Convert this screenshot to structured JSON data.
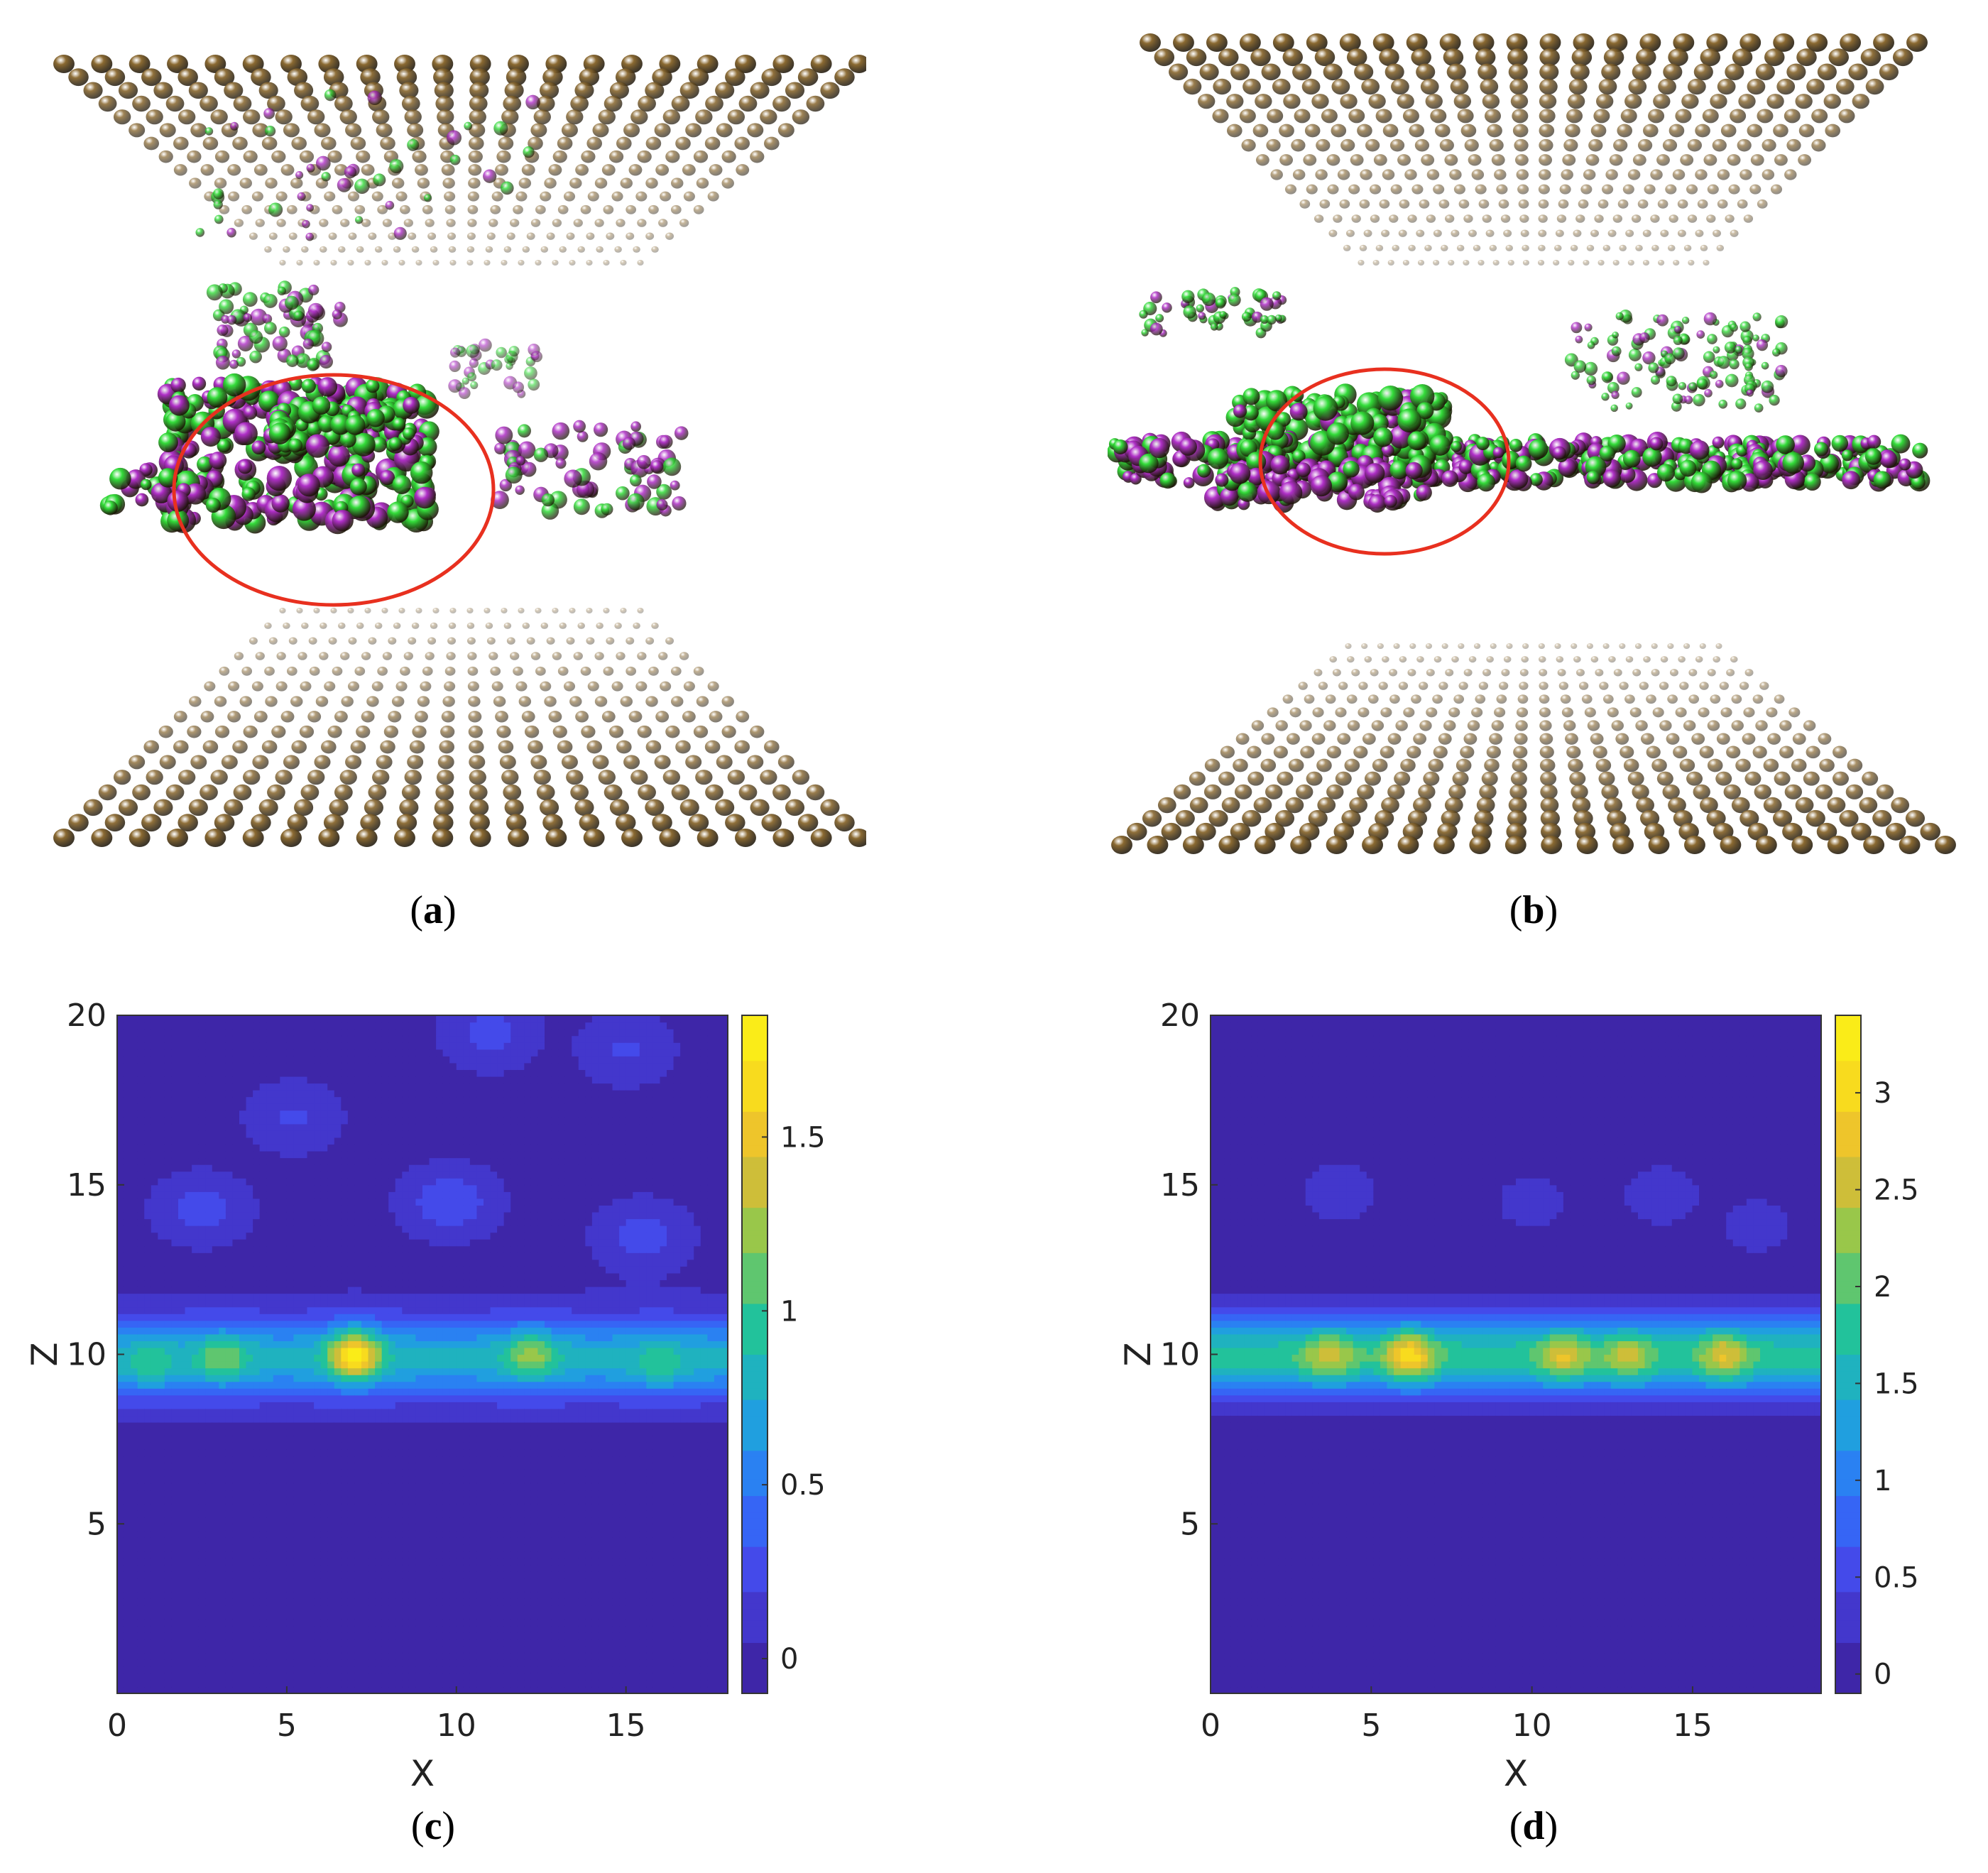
{
  "panels": {
    "a": {
      "label": "a",
      "colors": {
        "electrode": "#8b6a32",
        "ion_green": "#33dd3a",
        "ion_purple": "#b030c8",
        "highlight": "#e8301f"
      }
    },
    "b": {
      "label": "b",
      "colors": {
        "electrode": "#8b6a32",
        "ion_green": "#33dd3a",
        "ion_purple": "#b030c8",
        "highlight": "#e8301f"
      }
    },
    "c": {
      "label": "c"
    },
    "d": {
      "label": "d"
    }
  },
  "chart_data": [
    {
      "id": "c",
      "type": "heatmap",
      "title": "",
      "xlabel": "X",
      "ylabel": "Z",
      "xlim": [
        0,
        18
      ],
      "ylim": [
        0,
        20
      ],
      "xticks": [
        "0",
        "5",
        "10",
        "15"
      ],
      "yticks": [
        "5",
        "10",
        "15",
        "20"
      ],
      "colorbar": {
        "range": [
          -0.1,
          1.85
        ],
        "ticks": [
          "0",
          "0.5",
          "1",
          "1.5"
        ]
      },
      "colormap": [
        "#3e26a8",
        "#4743e7",
        "#2f72fb",
        "#1da6da",
        "#22c29b",
        "#8cc94e",
        "#e9ba31",
        "#fbe11b",
        "#f9fb14"
      ],
      "band": {
        "z_center": 9.9,
        "base_value": 0.78
      },
      "hotspots": [
        {
          "x": 1.0,
          "z": 9.6,
          "value": 1.0
        },
        {
          "x": 3.1,
          "z": 9.9,
          "value": 1.15
        },
        {
          "x": 7.0,
          "z": 10.0,
          "value": 1.78
        },
        {
          "x": 12.2,
          "z": 10.0,
          "value": 1.25
        },
        {
          "x": 16.0,
          "z": 9.6,
          "value": 1.0
        }
      ],
      "upper_blobs": [
        {
          "x": 2.5,
          "z": 14.3,
          "value": 0.25
        },
        {
          "x": 9.8,
          "z": 14.5,
          "value": 0.32
        },
        {
          "x": 15.5,
          "z": 13.5,
          "value": 0.25
        },
        {
          "x": 5.2,
          "z": 17.0,
          "value": 0.2
        },
        {
          "x": 11.0,
          "z": 19.5,
          "value": 0.25
        },
        {
          "x": 15.0,
          "z": 19.0,
          "value": 0.2
        }
      ]
    },
    {
      "id": "d",
      "type": "heatmap",
      "title": "",
      "xlabel": "X",
      "ylabel": "Z",
      "xlim": [
        0,
        19
      ],
      "ylim": [
        0,
        20
      ],
      "xticks": [
        "0",
        "5",
        "10",
        "15"
      ],
      "yticks": [
        "5",
        "10",
        "15",
        "20"
      ],
      "colorbar": {
        "range": [
          -0.1,
          3.4
        ],
        "ticks": [
          "0",
          "0.5",
          "1",
          "1.5",
          "2",
          "2.5",
          "3"
        ]
      },
      "colormap": [
        "#3e26a8",
        "#4743e7",
        "#2f72fb",
        "#1da6da",
        "#22c29b",
        "#8cc94e",
        "#e9ba31",
        "#fbe11b",
        "#f9fb14"
      ],
      "band": {
        "z_center": 9.95,
        "base_value": 1.8
      },
      "hotspots": [
        {
          "x": 3.7,
          "z": 10.0,
          "value": 2.6
        },
        {
          "x": 6.2,
          "z": 10.0,
          "value": 3.05
        },
        {
          "x": 11.0,
          "z": 10.0,
          "value": 2.7
        },
        {
          "x": 13.0,
          "z": 10.0,
          "value": 2.5
        },
        {
          "x": 16.0,
          "z": 10.0,
          "value": 2.7
        }
      ],
      "upper_blobs": [
        {
          "x": 4.0,
          "z": 14.8,
          "value": 0.35
        },
        {
          "x": 10.0,
          "z": 14.5,
          "value": 0.3
        },
        {
          "x": 14.0,
          "z": 14.7,
          "value": 0.35
        },
        {
          "x": 17.0,
          "z": 13.8,
          "value": 0.3
        }
      ]
    }
  ]
}
